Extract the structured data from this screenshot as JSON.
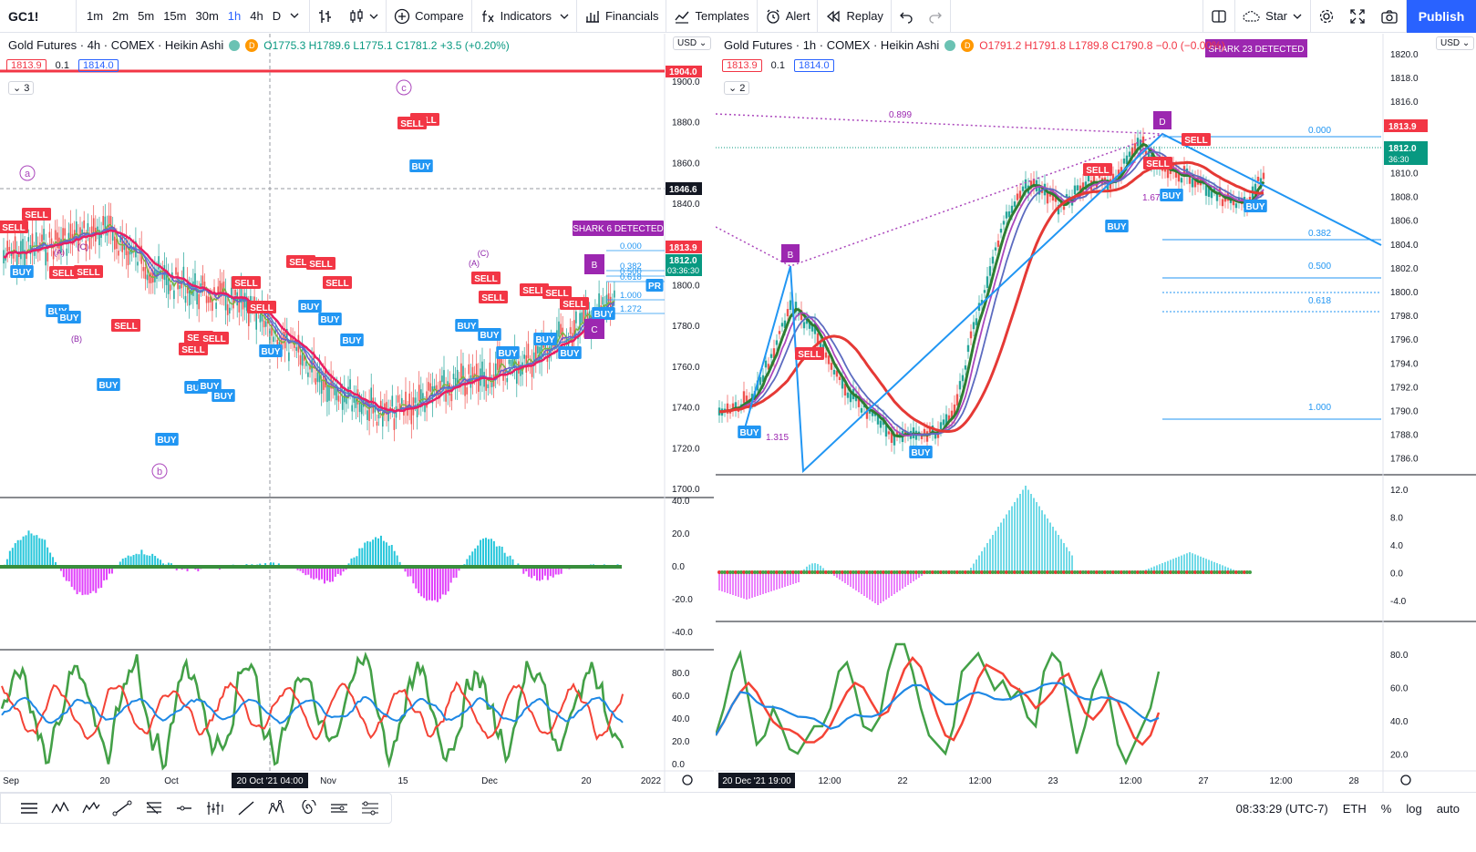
{
  "toolbar": {
    "symbol": "GC1!",
    "timeframes": [
      "1m",
      "2m",
      "5m",
      "15m",
      "30m",
      "1h",
      "4h",
      "D"
    ],
    "active_timeframe": "1h",
    "compare": "Compare",
    "indicators": "Indicators",
    "financials": "Financials",
    "templates": "Templates",
    "alert": "Alert",
    "replay": "Replay",
    "star": "Star",
    "publish": "Publish"
  },
  "left_chart": {
    "title": "Gold Futures · 4h · COMEX · Heikin Ashi",
    "ohlc": "O1775.3  H1789.6  L1775.1  C1781.2  +3.5 (+0.20%)",
    "bid": "1813.9",
    "spread": "0.1",
    "ask": "1814.0",
    "collapse_count": "3",
    "currency": "USD",
    "price_ticks": [
      "1900.0",
      "1880.0",
      "1860.0",
      "1840.0",
      "1820.0",
      "1800.0",
      "1780.0",
      "1760.0",
      "1740.0",
      "1720.0",
      "1700.0"
    ],
    "price_labels": {
      "red_line": "1904.0",
      "crosshair": "1846.6",
      "last": "1813.9",
      "current": "1812.0",
      "countdown": "03:36:30"
    },
    "osc_ticks": [
      "40.0",
      "20.0",
      "0.0",
      "-20.0",
      "-40.0"
    ],
    "rsi_ticks": [
      "80.0",
      "60.0",
      "40.0",
      "20.0",
      "0.0"
    ],
    "time_ticks": [
      "Sep",
      "20",
      "Oct",
      "Nov",
      "15",
      "Dec",
      "20",
      "2022"
    ],
    "crosshair_time": "20 Oct '21   04:00",
    "wave_labels": [
      "a",
      "b",
      "c",
      "(A)",
      "(C)",
      "(B)"
    ],
    "pattern_label": "SHARK 6 DETECTED",
    "fib_labels": [
      "0.000",
      "0.382",
      "0.500",
      "0.618",
      "1.000",
      "1.272"
    ],
    "buy": "BUY",
    "sell": "SELL",
    "pr": "PR"
  },
  "right_chart": {
    "title": "Gold Futures · 1h · COMEX · Heikin Ashi",
    "ohlc": "O1791.2  H1791.8  L1789.8  C1790.8  −0.0  (−0.00%)",
    "bid": "1813.9",
    "spread": "0.1",
    "ask": "1814.0",
    "collapse_count": "2",
    "currency": "USD",
    "price_ticks": [
      "1820.0",
      "1818.0",
      "1816.0",
      "1814.0",
      "1812.0",
      "1810.0",
      "1808.0",
      "1806.0",
      "1804.0",
      "1802.0",
      "1800.0",
      "1798.0",
      "1796.0",
      "1794.0",
      "1792.0",
      "1790.0",
      "1788.0",
      "1786.0"
    ],
    "price_labels": {
      "last": "1813.9",
      "current": "1812.0",
      "countdown": "36:30"
    },
    "osc_ticks": [
      "12.0",
      "8.0",
      "4.0",
      "0.0",
      "-4.0"
    ],
    "rsi_ticks": [
      "80.0",
      "60.0",
      "40.0",
      "20.0"
    ],
    "time_ticks": [
      "12:00",
      "22",
      "12:00",
      "23",
      "12:00",
      "27",
      "12:00",
      "28"
    ],
    "crosshair_time": "20 Dec '21   19:00",
    "pattern_label": "SHARK 23 DETECTED",
    "points": [
      "B",
      "D"
    ],
    "fib_labels": [
      "0.899",
      "0.000",
      "0.382",
      "0.500",
      "0.618",
      "1.000",
      "1.315",
      "1.672"
    ],
    "buy": "BUY",
    "sell": "SELL"
  },
  "status_bar": {
    "time": "08:33:29 (UTC-7)",
    "session": "ETH",
    "percent": "%",
    "log": "log",
    "auto": "auto"
  }
}
